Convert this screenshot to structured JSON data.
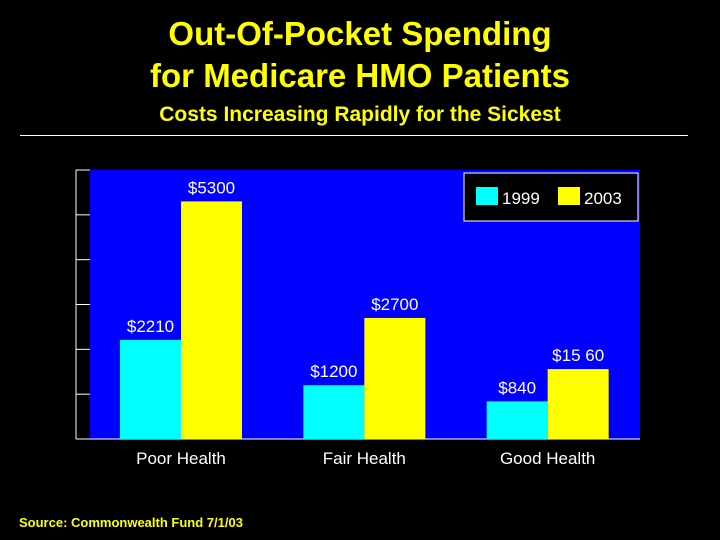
{
  "slide": {
    "title_line1": "Out-Of-Pocket Spending",
    "title_line2": "for Medicare HMO Patients",
    "subtitle": "Costs Increasing Rapidly for the Sickest",
    "source": "Source: Commonwealth Fund 7/1/03"
  },
  "colors": {
    "background": "#000000",
    "plot_area": "#0000ff",
    "text": "#ffff00",
    "series_1999": "#00ffff",
    "series_2003": "#ffff00"
  },
  "chart_data": {
    "type": "bar",
    "categories": [
      "Poor Health",
      "Fair Health",
      "Good Health"
    ],
    "series": [
      {
        "name": "1999",
        "values": [
          2210,
          1200,
          840
        ],
        "labels": [
          "$2210",
          "$1200",
          "$840"
        ]
      },
      {
        "name": "2003",
        "values": [
          5300,
          2700,
          1560
        ],
        "labels": [
          "$5300",
          "$2700",
          "$15 60"
        ]
      }
    ],
    "ylim": [
      0,
      6000
    ],
    "y_tick_count": 6,
    "y_tick_labels_shown": false,
    "legend_position": "top-right",
    "grid": false
  }
}
